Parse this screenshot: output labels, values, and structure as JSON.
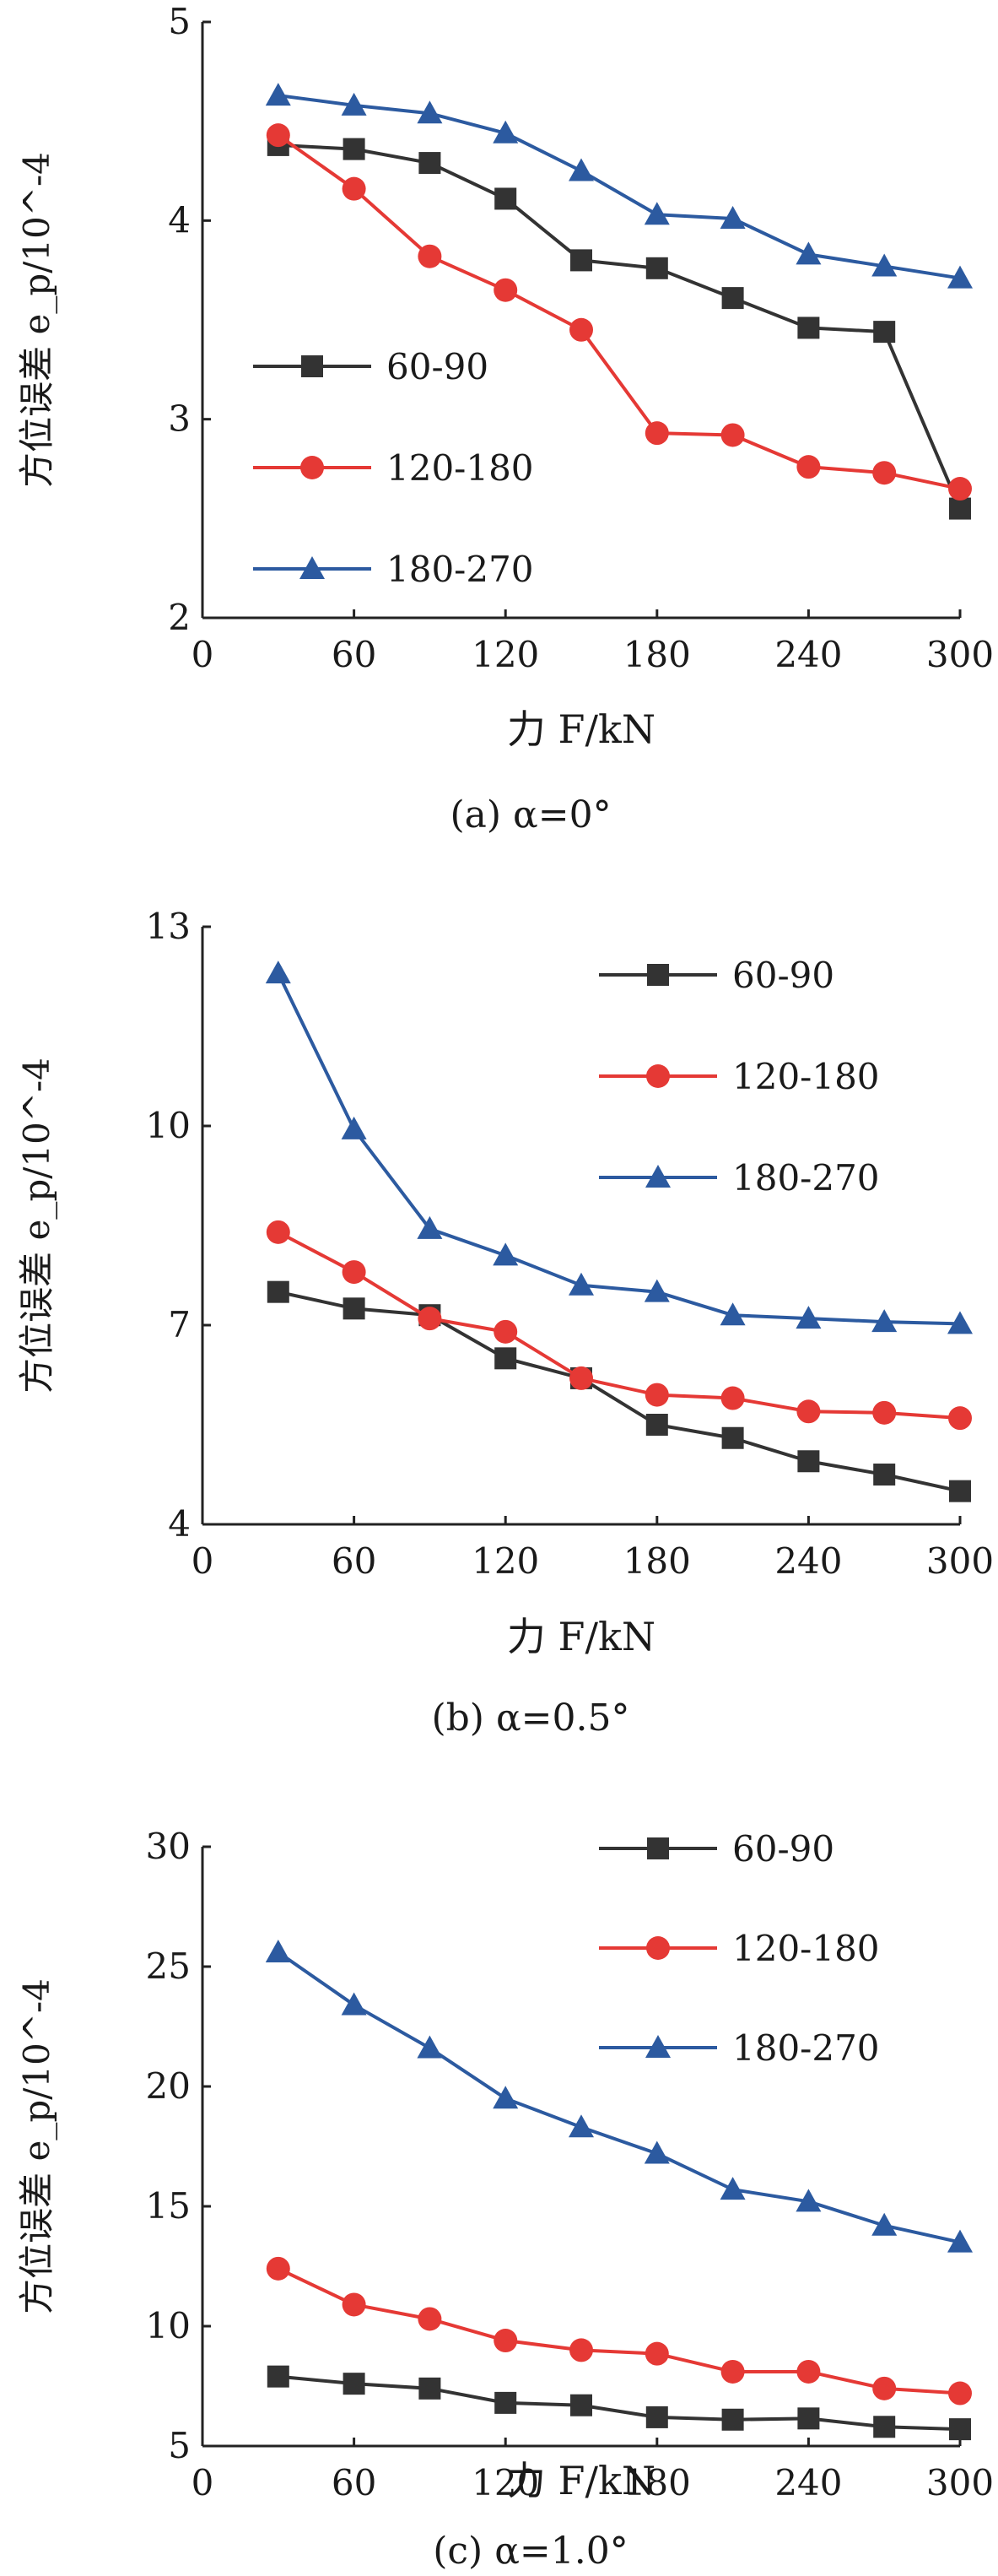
{
  "chart_data": [
    {
      "type": "line",
      "caption": "(a) α=0°",
      "xlabel": "力 F/kN",
      "ylabel": "方位误差 e_p/10^-4",
      "xlim": [
        0,
        300
      ],
      "ylim": [
        2,
        5
      ],
      "xticks": [
        "0",
        "60",
        "120",
        "180",
        "240",
        "300"
      ],
      "yticks": [
        "2",
        "3",
        "4",
        "5"
      ],
      "legend_position": "center-left",
      "x": [
        30,
        60,
        90,
        120,
        150,
        180,
        210,
        240,
        270,
        300
      ],
      "series": [
        {
          "name": "60-90",
          "color": "#333333",
          "marker": "square",
          "values": [
            4.38,
            4.36,
            4.29,
            4.11,
            3.8,
            3.76,
            3.61,
            3.46,
            3.44,
            2.55
          ]
        },
        {
          "name": "120-180",
          "color": "#e53935",
          "marker": "circle",
          "values": [
            4.43,
            4.16,
            3.82,
            3.65,
            3.45,
            2.93,
            2.92,
            2.76,
            2.73,
            2.65
          ]
        },
        {
          "name": "180-270",
          "color": "#2c5aa0",
          "marker": "triangle",
          "values": [
            4.63,
            4.58,
            4.54,
            4.44,
            4.25,
            4.03,
            4.01,
            3.83,
            3.77,
            3.71
          ]
        }
      ]
    },
    {
      "type": "line",
      "caption": "(b) α=0.5°",
      "xlabel": "力 F/kN",
      "ylabel": "方位误差 e_p/10^-4",
      "xlim": [
        0,
        300
      ],
      "ylim": [
        4,
        13
      ],
      "xticks": [
        "0",
        "60",
        "120",
        "180",
        "240",
        "300"
      ],
      "yticks": [
        "4",
        "7",
        "10",
        "13"
      ],
      "legend_position": "top-right",
      "x": [
        30,
        60,
        90,
        120,
        150,
        180,
        210,
        240,
        270,
        300
      ],
      "series": [
        {
          "name": "60-90",
          "color": "#333333",
          "marker": "square",
          "values": [
            7.5,
            7.25,
            7.15,
            6.5,
            6.2,
            5.5,
            5.3,
            4.95,
            4.75,
            4.5
          ]
        },
        {
          "name": "120-180",
          "color": "#e53935",
          "marker": "circle",
          "values": [
            8.4,
            7.8,
            7.1,
            6.9,
            6.2,
            5.95,
            5.9,
            5.7,
            5.68,
            5.6
          ]
        },
        {
          "name": "180-270",
          "color": "#2c5aa0",
          "marker": "triangle",
          "values": [
            12.3,
            9.95,
            8.45,
            8.05,
            7.6,
            7.5,
            7.15,
            7.1,
            7.05,
            7.02
          ]
        }
      ]
    },
    {
      "type": "line",
      "caption": "(c) α=1.0°",
      "xlabel": "力 F/kN",
      "ylabel": "方位误差 e_p/10^-4",
      "xlim": [
        0,
        300
      ],
      "ylim": [
        5,
        30
      ],
      "xticks": [
        "0",
        "60",
        "120",
        "180",
        "240",
        "300"
      ],
      "yticks": [
        "5",
        "10",
        "15",
        "20",
        "25",
        "30"
      ],
      "legend_position": "top-right",
      "x": [
        30,
        60,
        90,
        120,
        150,
        180,
        210,
        240,
        270,
        300
      ],
      "series": [
        {
          "name": "60-90",
          "color": "#333333",
          "marker": "square",
          "values": [
            7.9,
            7.6,
            7.4,
            6.8,
            6.7,
            6.2,
            6.1,
            6.15,
            5.8,
            5.7
          ]
        },
        {
          "name": "120-180",
          "color": "#e53935",
          "marker": "circle",
          "values": [
            12.4,
            10.9,
            10.3,
            9.4,
            9.0,
            8.85,
            8.1,
            8.1,
            7.4,
            7.2
          ]
        },
        {
          "name": "180-270",
          "color": "#2c5aa0",
          "marker": "triangle",
          "values": [
            25.6,
            23.4,
            21.6,
            19.5,
            18.3,
            17.2,
            15.7,
            15.2,
            14.2,
            13.5
          ]
        }
      ]
    }
  ]
}
